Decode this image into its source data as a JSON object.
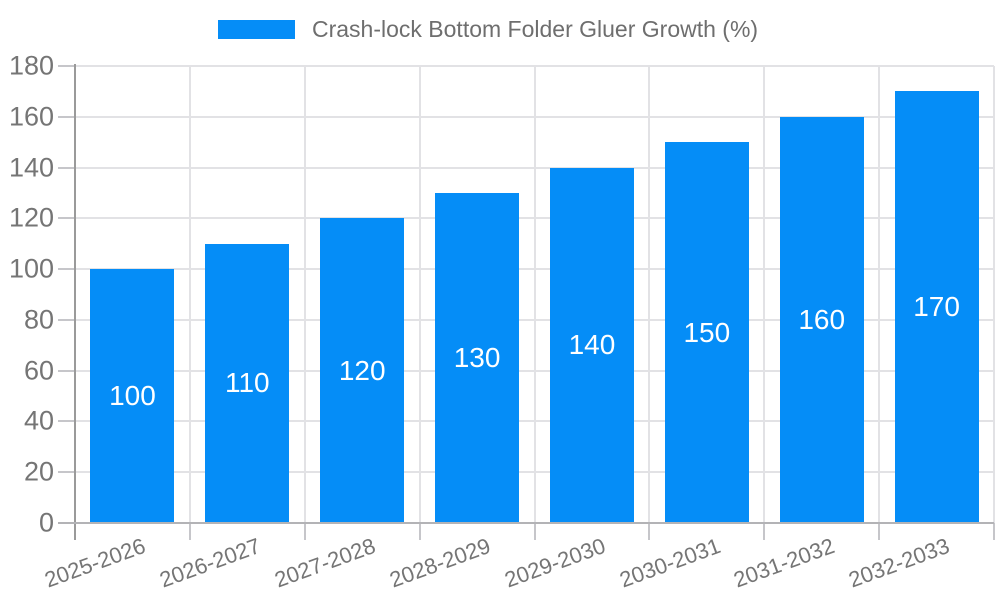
{
  "legend": {
    "label": "Crash-lock Bottom Folder Gluer Growth (%)"
  },
  "chart_data": {
    "type": "bar",
    "title": "Crash-lock Bottom Folder Gluer Growth (%)",
    "categories": [
      "2025-2026",
      "2026-2027",
      "2027-2028",
      "2028-2029",
      "2029-2030",
      "2030-2031",
      "2031-2032",
      "2032-2033"
    ],
    "values": [
      100,
      110,
      120,
      130,
      140,
      150,
      160,
      170
    ],
    "bar_labels": [
      "100",
      "110",
      "120",
      "130",
      "140",
      "150",
      "160",
      "170"
    ],
    "xlabel": "",
    "ylabel": "",
    "ylim": [
      0,
      180
    ],
    "yticks": [
      0,
      20,
      40,
      60,
      80,
      100,
      120,
      140,
      160,
      180
    ],
    "grid": true,
    "legend_position": "top-center",
    "value_labels_inside_bars": true,
    "x_tick_label_rotation_deg": -20,
    "colors": {
      "bar": "#058DF7",
      "grid": "#e2e2e5",
      "axis": "#9a9a9a",
      "axis_light": "#b3b3b6",
      "tick": "#c6c6ca",
      "label_text": "#757575",
      "title_text": "#6e6e6e",
      "value_text": "#ffffff",
      "background": "#ffffff"
    }
  }
}
